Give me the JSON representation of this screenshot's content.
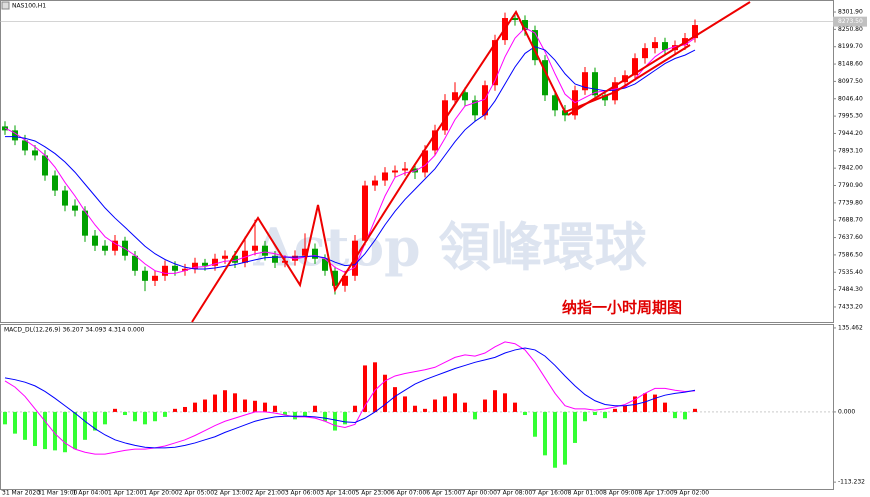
{
  "chart_data": [
    {
      "type": "candlestick",
      "title": "NAS100,H1",
      "open": [
        7965.0,
        7953.3,
        7923.8,
        7894.2,
        7879.5,
        7820.4,
        7776.1,
        7731.8,
        7717.0,
        7643.2,
        7613.6,
        7598.8,
        7628.4,
        7584.1,
        7539.8,
        7510.2,
        7525.0,
        7554.5,
        7539.8,
        7545.7,
        7563.4,
        7554.5,
        7575.2,
        7584.1,
        7563.4,
        7598.8,
        7613.6,
        7584.1,
        7563.4,
        7569.3,
        7584.1,
        7604.8,
        7575.2,
        7539.8,
        7495.5,
        7525.0,
        7628.4,
        7790.9,
        7805.6,
        7829.3,
        7835.2,
        7841.1,
        7829.3,
        7894.2,
        7953.3,
        8041.9,
        8065.6,
        8041.9,
        7997.6,
        8086.3,
        8219.2,
        8284.2,
        8278.3,
        8248.7,
        8160.1,
        8056.7,
        8012.4,
        7997.6,
        8071.5,
        8124.7,
        8056.7,
        8041.9,
        8095.1,
        8115.8,
        8166.0,
        8195.6,
        8213.3,
        8189.6,
        8204.4,
        8225.1
      ],
      "high": [
        7980,
        7968,
        7940,
        7910,
        7895,
        7835,
        7790,
        7750,
        7730,
        7660,
        7630,
        7645,
        7640,
        7598,
        7552,
        7540,
        7570,
        7568,
        7560,
        7578,
        7575,
        7590,
        7600,
        7598,
        7640,
        7690,
        7628,
        7598,
        7585,
        7600,
        7650,
        7620,
        7588,
        7552,
        7540,
        7645,
        7805,
        7820,
        7845,
        7850,
        7860,
        7856,
        7910,
        7970,
        8060,
        8095,
        8080,
        8056,
        8100,
        8235,
        8300,
        8298,
        8292,
        8262,
        8175,
        8070,
        8028,
        8085,
        8140,
        8138,
        8070,
        8110,
        8130,
        8180,
        8210,
        8228,
        8226,
        8218,
        8240,
        8280
      ],
      "low": [
        7940,
        7910,
        7880,
        7865,
        7805,
        7760,
        7715,
        7700,
        7625,
        7598,
        7585,
        7585,
        7570,
        7525,
        7480,
        7495,
        7510,
        7525,
        7525,
        7532,
        7540,
        7540,
        7560,
        7548,
        7550,
        7585,
        7570,
        7548,
        7550,
        7555,
        7570,
        7560,
        7525,
        7470,
        7478,
        7510,
        7615,
        7775,
        7790,
        7815,
        7820,
        7810,
        7815,
        7880,
        7940,
        8028,
        8025,
        7980,
        7985,
        8070,
        8205,
        8262,
        8232,
        8145,
        8040,
        7995,
        7980,
        7985,
        8058,
        8040,
        8025,
        8030,
        8080,
        8100,
        8150,
        8180,
        8175,
        8175,
        8190,
        8212
      ],
      "close": [
        7953.3,
        7923.8,
        7894.2,
        7879.5,
        7820.4,
        7776.1,
        7731.8,
        7717.0,
        7643.2,
        7613.6,
        7598.8,
        7628.4,
        7584.1,
        7539.8,
        7510.2,
        7525.0,
        7554.5,
        7539.8,
        7545.7,
        7563.4,
        7554.5,
        7575.2,
        7584.1,
        7563.4,
        7598.8,
        7613.6,
        7584.1,
        7563.4,
        7569.3,
        7584.1,
        7604.8,
        7575.2,
        7539.8,
        7495.5,
        7525.0,
        7628.4,
        7790.9,
        7805.6,
        7829.3,
        7835.2,
        7841.1,
        7829.3,
        7894.2,
        7953.3,
        8041.9,
        8065.6,
        8041.9,
        7997.6,
        8086.3,
        8219.2,
        8284.2,
        8278.3,
        8248.7,
        8160.1,
        8056.7,
        8012.4,
        7997.6,
        8071.5,
        8124.7,
        8056.7,
        8041.9,
        8095.1,
        8115.8,
        8166.0,
        8195.6,
        8213.3,
        8189.6,
        8204.4,
        8225.1,
        8263.5
      ],
      "up_color": "#ff0000",
      "down_color": "#00a000",
      "lines": [
        {
          "color": "#ff00ff",
          "values": [
            7960,
            7945,
            7925,
            7905,
            7880,
            7845,
            7800,
            7760,
            7715,
            7675,
            7640,
            7620,
            7605,
            7585,
            7560,
            7540,
            7532,
            7532,
            7540,
            7550,
            7552,
            7560,
            7568,
            7570,
            7580,
            7590,
            7595,
            7590,
            7582,
            7575,
            7580,
            7585,
            7575,
            7550,
            7535,
            7550,
            7620,
            7690,
            7760,
            7815,
            7828,
            7834,
            7850,
            7880,
            7930,
            7985,
            8025,
            8035,
            8045,
            8100,
            8170,
            8225,
            8255,
            8240,
            8185,
            8120,
            8060,
            8035,
            8050,
            8065,
            8070,
            8075,
            8080,
            8105,
            8140,
            8170,
            8190,
            8200,
            8205,
            8225
          ]
        },
        {
          "color": "#0000ff",
          "values": [
            7935,
            7935,
            7930,
            7922,
            7905,
            7885,
            7860,
            7830,
            7795,
            7760,
            7725,
            7695,
            7668,
            7640,
            7612,
            7590,
            7573,
            7560,
            7550,
            7545,
            7545,
            7548,
            7553,
            7558,
            7565,
            7572,
            7578,
            7580,
            7580,
            7580,
            7582,
            7583,
            7578,
            7565,
            7555,
            7558,
            7590,
            7630,
            7675,
            7715,
            7750,
            7780,
            7810,
            7840,
            7880,
            7920,
            7955,
            7980,
            8000,
            8040,
            8090,
            8140,
            8180,
            8200,
            8190,
            8160,
            8120,
            8090,
            8080,
            8075,
            8070,
            8072,
            8078,
            8090,
            8110,
            8130,
            8150,
            8165,
            8175,
            8190
          ]
        }
      ],
      "ylim": [
        7388.9,
        8337.3
      ],
      "yticks": [
        {
          "value": 8301.9,
          "label": "8301.90"
        },
        {
          "value": 8250.8,
          "label": "8250.80"
        },
        {
          "value": 8199.7,
          "label": "8199.70"
        },
        {
          "value": 8148.6,
          "label": "8148.60"
        },
        {
          "value": 8097.5,
          "label": "8097.50"
        },
        {
          "value": 8046.4,
          "label": "8046.40"
        },
        {
          "value": 7995.3,
          "label": "7995.30"
        },
        {
          "value": 7944.2,
          "label": "7944.20"
        },
        {
          "value": 7893.1,
          "label": "7893.10"
        },
        {
          "value": 7842,
          "label": "7842.00"
        },
        {
          "value": 7790.9,
          "label": "7790.90"
        },
        {
          "value": 7739.8,
          "label": "7739.80"
        },
        {
          "value": 7688.7,
          "label": "7688.70"
        },
        {
          "value": 7637.6,
          "label": "7637.60"
        },
        {
          "value": 7586.5,
          "label": "7586.50"
        },
        {
          "value": 7535.4,
          "label": "7535.40"
        },
        {
          "value": 7484.3,
          "label": "7484.30"
        },
        {
          "value": 7433.2,
          "label": "7433.20"
        }
      ],
      "current_price": {
        "value": 8273.5,
        "label": "8273.50"
      },
      "annotation": "纳指一小时周期图",
      "watermark": "Actop 領峰環球"
    },
    {
      "type": "macd",
      "label": "MACD_DL(12,26,9) 36.207 34.093 4.314 0.000",
      "histogram": [
        -20,
        -35,
        -45,
        -55,
        -60,
        -62,
        -65,
        -60,
        -45,
        -30,
        -20,
        5,
        -5,
        -15,
        -20,
        -15,
        -8,
        5,
        8,
        15,
        20,
        28,
        35,
        30,
        20,
        18,
        15,
        10,
        -5,
        -12,
        -8,
        10,
        -15,
        -30,
        -20,
        10,
        75,
        80,
        60,
        40,
        25,
        10,
        5,
        20,
        25,
        30,
        15,
        -12,
        20,
        35,
        30,
        15,
        -5,
        -40,
        -70,
        -90,
        -85,
        -50,
        -15,
        -5,
        -10,
        5,
        10,
        25,
        30,
        28,
        15,
        -10,
        -12,
        5
      ],
      "pos_color": "#ff0000",
      "neg_color": "#33ff33",
      "lines": [
        {
          "color": "#ff00ff",
          "values": [
            50,
            40,
            25,
            5,
            -15,
            -35,
            -50,
            -60,
            -65,
            -68,
            -68,
            -65,
            -62,
            -60,
            -60,
            -58,
            -55,
            -50,
            -45,
            -38,
            -30,
            -22,
            -15,
            -10,
            -5,
            0,
            0,
            -2,
            -5,
            -8,
            -8,
            -10,
            -15,
            -22,
            -25,
            -20,
            10,
            35,
            50,
            58,
            62,
            65,
            68,
            72,
            80,
            88,
            92,
            90,
            95,
            105,
            113,
            110,
            100,
            80,
            55,
            30,
            10,
            5,
            5,
            3,
            5,
            8,
            12,
            20,
            30,
            38,
            38,
            35,
            33,
            34
          ]
        },
        {
          "color": "#0000ff",
          "values": [
            55,
            52,
            48,
            42,
            33,
            22,
            10,
            -2,
            -15,
            -27,
            -37,
            -45,
            -50,
            -54,
            -57,
            -58,
            -58,
            -57,
            -54,
            -50,
            -45,
            -40,
            -33,
            -27,
            -21,
            -15,
            -11,
            -8,
            -7,
            -7,
            -7,
            -8,
            -10,
            -13,
            -16,
            -17,
            -10,
            0,
            12,
            25,
            35,
            45,
            52,
            58,
            64,
            70,
            75,
            80,
            84,
            88,
            95,
            100,
            103,
            100,
            90,
            75,
            58,
            42,
            28,
            18,
            12,
            10,
            10,
            12,
            16,
            22,
            27,
            30,
            32,
            35
          ]
        }
      ],
      "ylim": [
        -124.3,
        140.2
      ],
      "yticks": [
        135.462,
        {
          "value": 0,
          "label": "0.000"
        },
        -113.232
      ],
      "x_labels": [
        "31 Mar 2020",
        "31 Mar 19:00",
        "1 Apr 04:00",
        "1 Apr 12:00",
        "1 Apr 20:00",
        "2 Apr 05:00",
        "2 Apr 13:00",
        "2 Apr 21:00",
        "3 Apr 06:00",
        "3 Apr 14:00",
        "5 Apr 23:00",
        "6 Apr 07:00",
        "6 Apr 15:00",
        "7 Apr 00:00",
        "7 Apr 08:00",
        "7 Apr 16:00",
        "8 Apr 01:00",
        "8 Apr 09:00",
        "8 Apr 17:00",
        "9 Apr 02:00"
      ]
    }
  ]
}
